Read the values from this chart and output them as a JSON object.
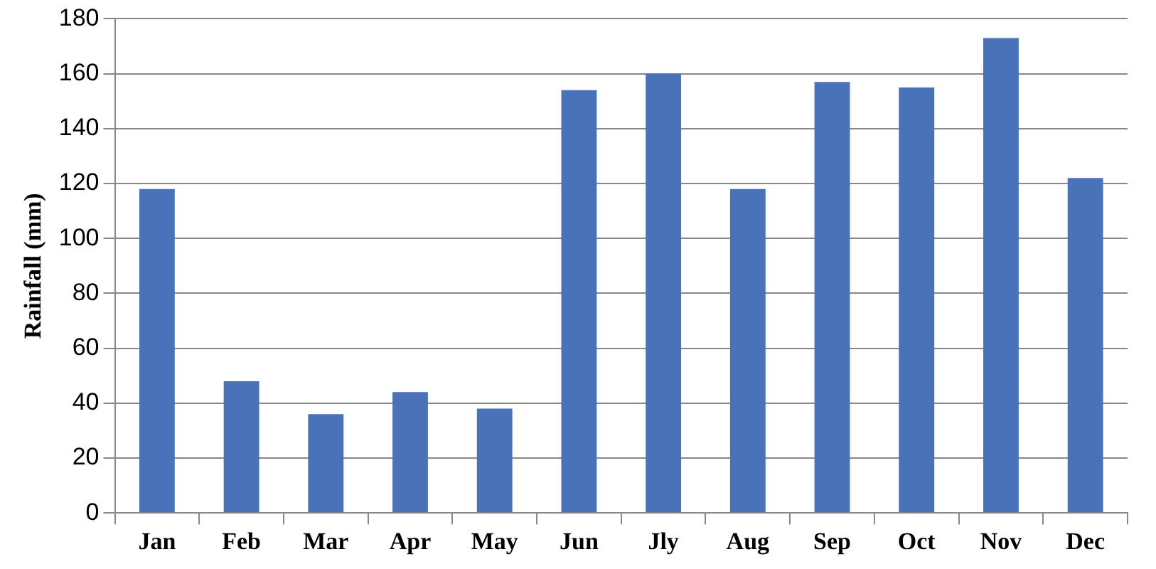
{
  "chart_data": {
    "type": "bar",
    "ylabel": "Rainfall (mm)",
    "categories": [
      "Jan",
      "Feb",
      "Mar",
      "Apr",
      "May",
      "Jun",
      "Jly",
      "Aug",
      "Sep",
      "Oct",
      "Nov",
      "Dec"
    ],
    "values": [
      118,
      48,
      36,
      44,
      38,
      154,
      160,
      118,
      157,
      155,
      173,
      122
    ],
    "color": "#4a72b8",
    "ylim": [
      0,
      180
    ],
    "yticks": [
      0,
      20,
      40,
      60,
      80,
      100,
      120,
      140,
      160,
      180
    ],
    "grid": "y",
    "legend": false
  }
}
